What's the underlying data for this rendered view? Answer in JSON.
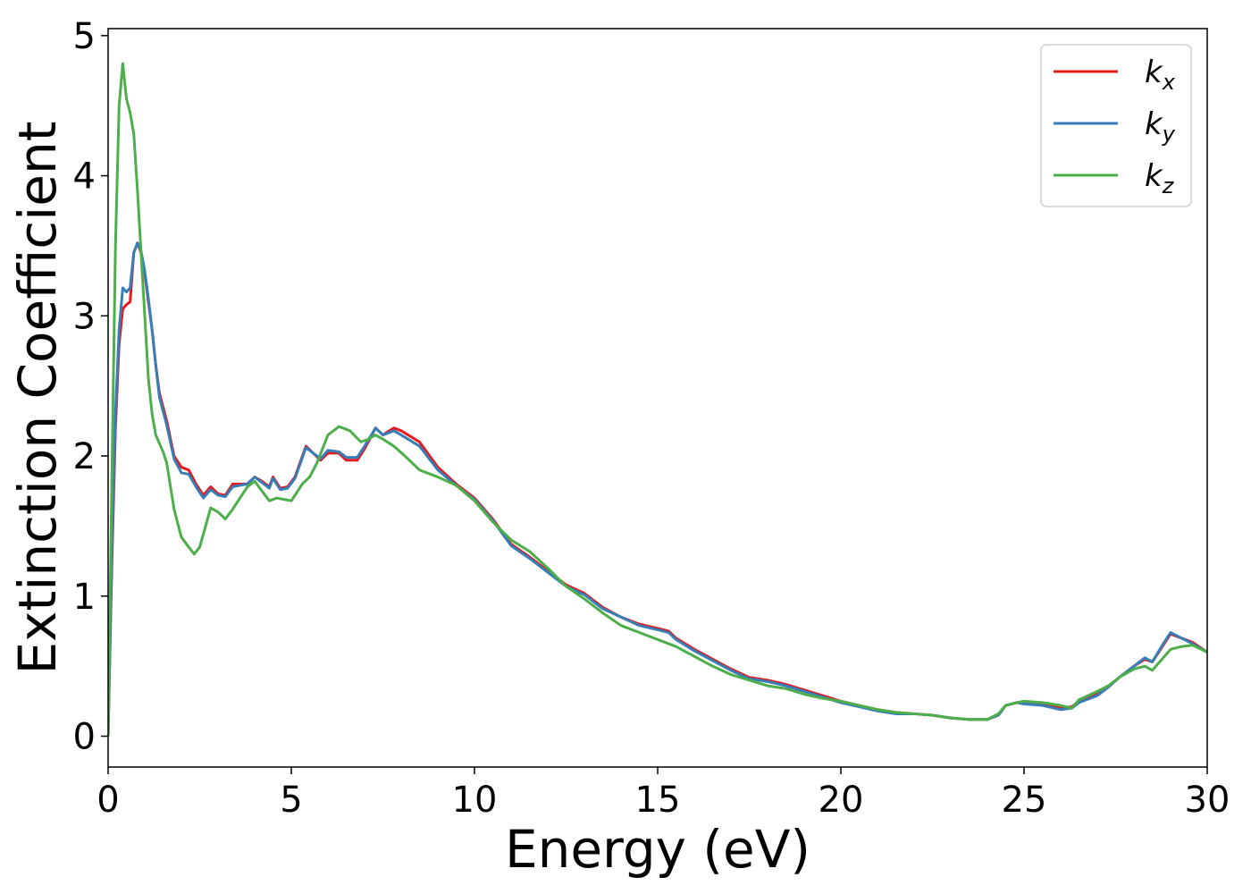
{
  "chart_data": {
    "type": "line",
    "title": "",
    "xlabel": "Energy (eV)",
    "ylabel": "Extinction Coefficient",
    "xlim": [
      0,
      30
    ],
    "ylim": [
      -0.22,
      5.05
    ],
    "x_ticks": [
      0,
      5,
      10,
      15,
      20,
      25,
      30
    ],
    "y_ticks": [
      0,
      1,
      2,
      3,
      4,
      5
    ],
    "grid": false,
    "legend_position": "top-right",
    "series": [
      {
        "name": "k",
        "subscript": "x",
        "color": "#e41a1c",
        "points": [
          [
            0,
            0
          ],
          [
            0.1,
            1.2
          ],
          [
            0.2,
            2.2
          ],
          [
            0.3,
            2.8
          ],
          [
            0.4,
            3.05
          ],
          [
            0.5,
            3.08
          ],
          [
            0.6,
            3.1
          ],
          [
            0.7,
            3.45
          ],
          [
            0.8,
            3.52
          ],
          [
            0.9,
            3.45
          ],
          [
            1.0,
            3.3
          ],
          [
            1.1,
            3.1
          ],
          [
            1.2,
            2.9
          ],
          [
            1.3,
            2.65
          ],
          [
            1.4,
            2.45
          ],
          [
            1.6,
            2.25
          ],
          [
            1.8,
            2.0
          ],
          [
            2.0,
            1.92
          ],
          [
            2.2,
            1.9
          ],
          [
            2.4,
            1.8
          ],
          [
            2.6,
            1.72
          ],
          [
            2.8,
            1.78
          ],
          [
            3.0,
            1.73
          ],
          [
            3.2,
            1.72
          ],
          [
            3.4,
            1.8
          ],
          [
            3.6,
            1.8
          ],
          [
            3.8,
            1.8
          ],
          [
            4.0,
            1.85
          ],
          [
            4.2,
            1.82
          ],
          [
            4.4,
            1.78
          ],
          [
            4.5,
            1.85
          ],
          [
            4.7,
            1.77
          ],
          [
            4.9,
            1.78
          ],
          [
            5.1,
            1.85
          ],
          [
            5.4,
            2.07
          ],
          [
            5.6,
            2.02
          ],
          [
            5.8,
            1.97
          ],
          [
            6.0,
            2.02
          ],
          [
            6.3,
            2.02
          ],
          [
            6.5,
            1.97
          ],
          [
            6.8,
            1.97
          ],
          [
            7.0,
            2.05
          ],
          [
            7.3,
            2.2
          ],
          [
            7.5,
            2.15
          ],
          [
            7.8,
            2.2
          ],
          [
            8.0,
            2.18
          ],
          [
            8.5,
            2.1
          ],
          [
            9.0,
            1.92
          ],
          [
            9.5,
            1.8
          ],
          [
            10.0,
            1.7
          ],
          [
            10.5,
            1.55
          ],
          [
            11.0,
            1.37
          ],
          [
            11.5,
            1.28
          ],
          [
            12.0,
            1.18
          ],
          [
            12.5,
            1.08
          ],
          [
            13.0,
            1.02
          ],
          [
            13.5,
            0.92
          ],
          [
            14.0,
            0.85
          ],
          [
            14.5,
            0.8
          ],
          [
            15.0,
            0.77
          ],
          [
            15.3,
            0.75
          ],
          [
            15.5,
            0.7
          ],
          [
            16.0,
            0.62
          ],
          [
            16.5,
            0.55
          ],
          [
            17.0,
            0.48
          ],
          [
            17.5,
            0.42
          ],
          [
            18.0,
            0.4
          ],
          [
            18.5,
            0.37
          ],
          [
            19.0,
            0.33
          ],
          [
            19.5,
            0.29
          ],
          [
            20.0,
            0.25
          ],
          [
            20.5,
            0.22
          ],
          [
            21.0,
            0.19
          ],
          [
            21.5,
            0.17
          ],
          [
            22.0,
            0.16
          ],
          [
            22.5,
            0.15
          ],
          [
            23.0,
            0.13
          ],
          [
            23.5,
            0.12
          ],
          [
            24.0,
            0.12
          ],
          [
            24.3,
            0.15
          ],
          [
            24.5,
            0.22
          ],
          [
            24.8,
            0.24
          ],
          [
            25.0,
            0.24
          ],
          [
            25.5,
            0.23
          ],
          [
            26.0,
            0.2
          ],
          [
            26.3,
            0.21
          ],
          [
            26.5,
            0.25
          ],
          [
            27.0,
            0.3
          ],
          [
            27.3,
            0.35
          ],
          [
            27.6,
            0.42
          ],
          [
            28.0,
            0.5
          ],
          [
            28.3,
            0.55
          ],
          [
            28.5,
            0.53
          ],
          [
            28.8,
            0.65
          ],
          [
            29.0,
            0.73
          ],
          [
            29.3,
            0.7
          ],
          [
            29.6,
            0.67
          ],
          [
            30.0,
            0.6
          ]
        ]
      },
      {
        "name": "k",
        "subscript": "y",
        "color": "#377eb8",
        "points": [
          [
            0,
            0
          ],
          [
            0.1,
            1.3
          ],
          [
            0.2,
            2.3
          ],
          [
            0.3,
            2.9
          ],
          [
            0.4,
            3.2
          ],
          [
            0.5,
            3.17
          ],
          [
            0.6,
            3.2
          ],
          [
            0.7,
            3.45
          ],
          [
            0.8,
            3.52
          ],
          [
            0.9,
            3.46
          ],
          [
            1.0,
            3.32
          ],
          [
            1.1,
            3.12
          ],
          [
            1.2,
            2.9
          ],
          [
            1.3,
            2.65
          ],
          [
            1.4,
            2.42
          ],
          [
            1.6,
            2.22
          ],
          [
            1.8,
            1.98
          ],
          [
            2.0,
            1.88
          ],
          [
            2.2,
            1.87
          ],
          [
            2.4,
            1.78
          ],
          [
            2.6,
            1.7
          ],
          [
            2.8,
            1.76
          ],
          [
            3.0,
            1.72
          ],
          [
            3.2,
            1.71
          ],
          [
            3.4,
            1.78
          ],
          [
            3.6,
            1.79
          ],
          [
            3.8,
            1.8
          ],
          [
            4.0,
            1.85
          ],
          [
            4.2,
            1.81
          ],
          [
            4.4,
            1.77
          ],
          [
            4.5,
            1.84
          ],
          [
            4.7,
            1.76
          ],
          [
            4.9,
            1.77
          ],
          [
            5.1,
            1.84
          ],
          [
            5.4,
            2.06
          ],
          [
            5.6,
            2.02
          ],
          [
            5.8,
            1.98
          ],
          [
            6.0,
            2.04
          ],
          [
            6.3,
            2.03
          ],
          [
            6.5,
            1.99
          ],
          [
            6.8,
            1.99
          ],
          [
            7.0,
            2.07
          ],
          [
            7.3,
            2.2
          ],
          [
            7.5,
            2.15
          ],
          [
            7.8,
            2.18
          ],
          [
            8.0,
            2.15
          ],
          [
            8.5,
            2.07
          ],
          [
            9.0,
            1.9
          ],
          [
            9.5,
            1.79
          ],
          [
            10.0,
            1.69
          ],
          [
            10.5,
            1.54
          ],
          [
            11.0,
            1.36
          ],
          [
            11.5,
            1.27
          ],
          [
            12.0,
            1.17
          ],
          [
            12.5,
            1.07
          ],
          [
            13.0,
            1.01
          ],
          [
            13.5,
            0.91
          ],
          [
            14.0,
            0.85
          ],
          [
            14.5,
            0.79
          ],
          [
            15.0,
            0.76
          ],
          [
            15.3,
            0.74
          ],
          [
            15.5,
            0.69
          ],
          [
            16.0,
            0.61
          ],
          [
            16.5,
            0.54
          ],
          [
            17.0,
            0.47
          ],
          [
            17.5,
            0.41
          ],
          [
            18.0,
            0.39
          ],
          [
            18.5,
            0.36
          ],
          [
            19.0,
            0.32
          ],
          [
            19.5,
            0.28
          ],
          [
            20.0,
            0.24
          ],
          [
            20.5,
            0.21
          ],
          [
            21.0,
            0.18
          ],
          [
            21.5,
            0.16
          ],
          [
            22.0,
            0.16
          ],
          [
            22.5,
            0.15
          ],
          [
            23.0,
            0.13
          ],
          [
            23.5,
            0.12
          ],
          [
            24.0,
            0.12
          ],
          [
            24.3,
            0.15
          ],
          [
            24.5,
            0.22
          ],
          [
            24.8,
            0.24
          ],
          [
            25.0,
            0.23
          ],
          [
            25.5,
            0.22
          ],
          [
            26.0,
            0.19
          ],
          [
            26.3,
            0.2
          ],
          [
            26.5,
            0.24
          ],
          [
            27.0,
            0.29
          ],
          [
            27.3,
            0.35
          ],
          [
            27.6,
            0.42
          ],
          [
            28.0,
            0.5
          ],
          [
            28.3,
            0.56
          ],
          [
            28.5,
            0.53
          ],
          [
            28.8,
            0.66
          ],
          [
            29.0,
            0.74
          ],
          [
            29.3,
            0.7
          ],
          [
            29.6,
            0.66
          ],
          [
            30.0,
            0.6
          ]
        ]
      },
      {
        "name": "k",
        "subscript": "z",
        "color": "#4daf4a",
        "points": [
          [
            0,
            0
          ],
          [
            0.1,
            1.8
          ],
          [
            0.2,
            3.5
          ],
          [
            0.3,
            4.5
          ],
          [
            0.4,
            4.8
          ],
          [
            0.5,
            4.55
          ],
          [
            0.6,
            4.45
          ],
          [
            0.7,
            4.3
          ],
          [
            0.8,
            3.9
          ],
          [
            0.9,
            3.45
          ],
          [
            1.0,
            3.0
          ],
          [
            1.1,
            2.55
          ],
          [
            1.2,
            2.3
          ],
          [
            1.3,
            2.15
          ],
          [
            1.5,
            2.03
          ],
          [
            1.6,
            1.95
          ],
          [
            1.8,
            1.62
          ],
          [
            2.0,
            1.42
          ],
          [
            2.2,
            1.35
          ],
          [
            2.35,
            1.3
          ],
          [
            2.5,
            1.35
          ],
          [
            2.8,
            1.63
          ],
          [
            3.0,
            1.6
          ],
          [
            3.2,
            1.55
          ],
          [
            3.4,
            1.62
          ],
          [
            3.6,
            1.7
          ],
          [
            3.8,
            1.78
          ],
          [
            4.0,
            1.82
          ],
          [
            4.2,
            1.75
          ],
          [
            4.4,
            1.68
          ],
          [
            4.6,
            1.7
          ],
          [
            4.8,
            1.69
          ],
          [
            5.0,
            1.68
          ],
          [
            5.3,
            1.8
          ],
          [
            5.5,
            1.85
          ],
          [
            5.7,
            1.95
          ],
          [
            6.0,
            2.15
          ],
          [
            6.3,
            2.21
          ],
          [
            6.6,
            2.18
          ],
          [
            6.9,
            2.1
          ],
          [
            7.1,
            2.12
          ],
          [
            7.3,
            2.15
          ],
          [
            7.5,
            2.12
          ],
          [
            7.8,
            2.07
          ],
          [
            8.1,
            2.0
          ],
          [
            8.5,
            1.9
          ],
          [
            9.0,
            1.85
          ],
          [
            9.5,
            1.79
          ],
          [
            10.0,
            1.68
          ],
          [
            10.5,
            1.53
          ],
          [
            11.0,
            1.4
          ],
          [
            11.5,
            1.32
          ],
          [
            12.0,
            1.2
          ],
          [
            12.5,
            1.07
          ],
          [
            13.0,
            0.98
          ],
          [
            13.5,
            0.88
          ],
          [
            14.0,
            0.79
          ],
          [
            14.5,
            0.74
          ],
          [
            15.0,
            0.69
          ],
          [
            15.5,
            0.64
          ],
          [
            16.0,
            0.57
          ],
          [
            16.5,
            0.5
          ],
          [
            17.0,
            0.44
          ],
          [
            17.5,
            0.4
          ],
          [
            18.0,
            0.36
          ],
          [
            18.5,
            0.34
          ],
          [
            19.0,
            0.3
          ],
          [
            19.5,
            0.27
          ],
          [
            20.0,
            0.25
          ],
          [
            20.5,
            0.22
          ],
          [
            21.0,
            0.19
          ],
          [
            21.5,
            0.17
          ],
          [
            22.0,
            0.16
          ],
          [
            22.5,
            0.15
          ],
          [
            23.0,
            0.13
          ],
          [
            23.5,
            0.12
          ],
          [
            24.0,
            0.12
          ],
          [
            24.3,
            0.16
          ],
          [
            24.5,
            0.22
          ],
          [
            24.8,
            0.24
          ],
          [
            25.0,
            0.25
          ],
          [
            25.5,
            0.24
          ],
          [
            26.0,
            0.22
          ],
          [
            26.3,
            0.2
          ],
          [
            26.5,
            0.26
          ],
          [
            27.0,
            0.32
          ],
          [
            27.3,
            0.36
          ],
          [
            27.6,
            0.42
          ],
          [
            28.0,
            0.48
          ],
          [
            28.3,
            0.5
          ],
          [
            28.5,
            0.47
          ],
          [
            28.8,
            0.56
          ],
          [
            29.0,
            0.62
          ],
          [
            29.3,
            0.64
          ],
          [
            29.6,
            0.65
          ],
          [
            30.0,
            0.6
          ]
        ]
      }
    ]
  }
}
